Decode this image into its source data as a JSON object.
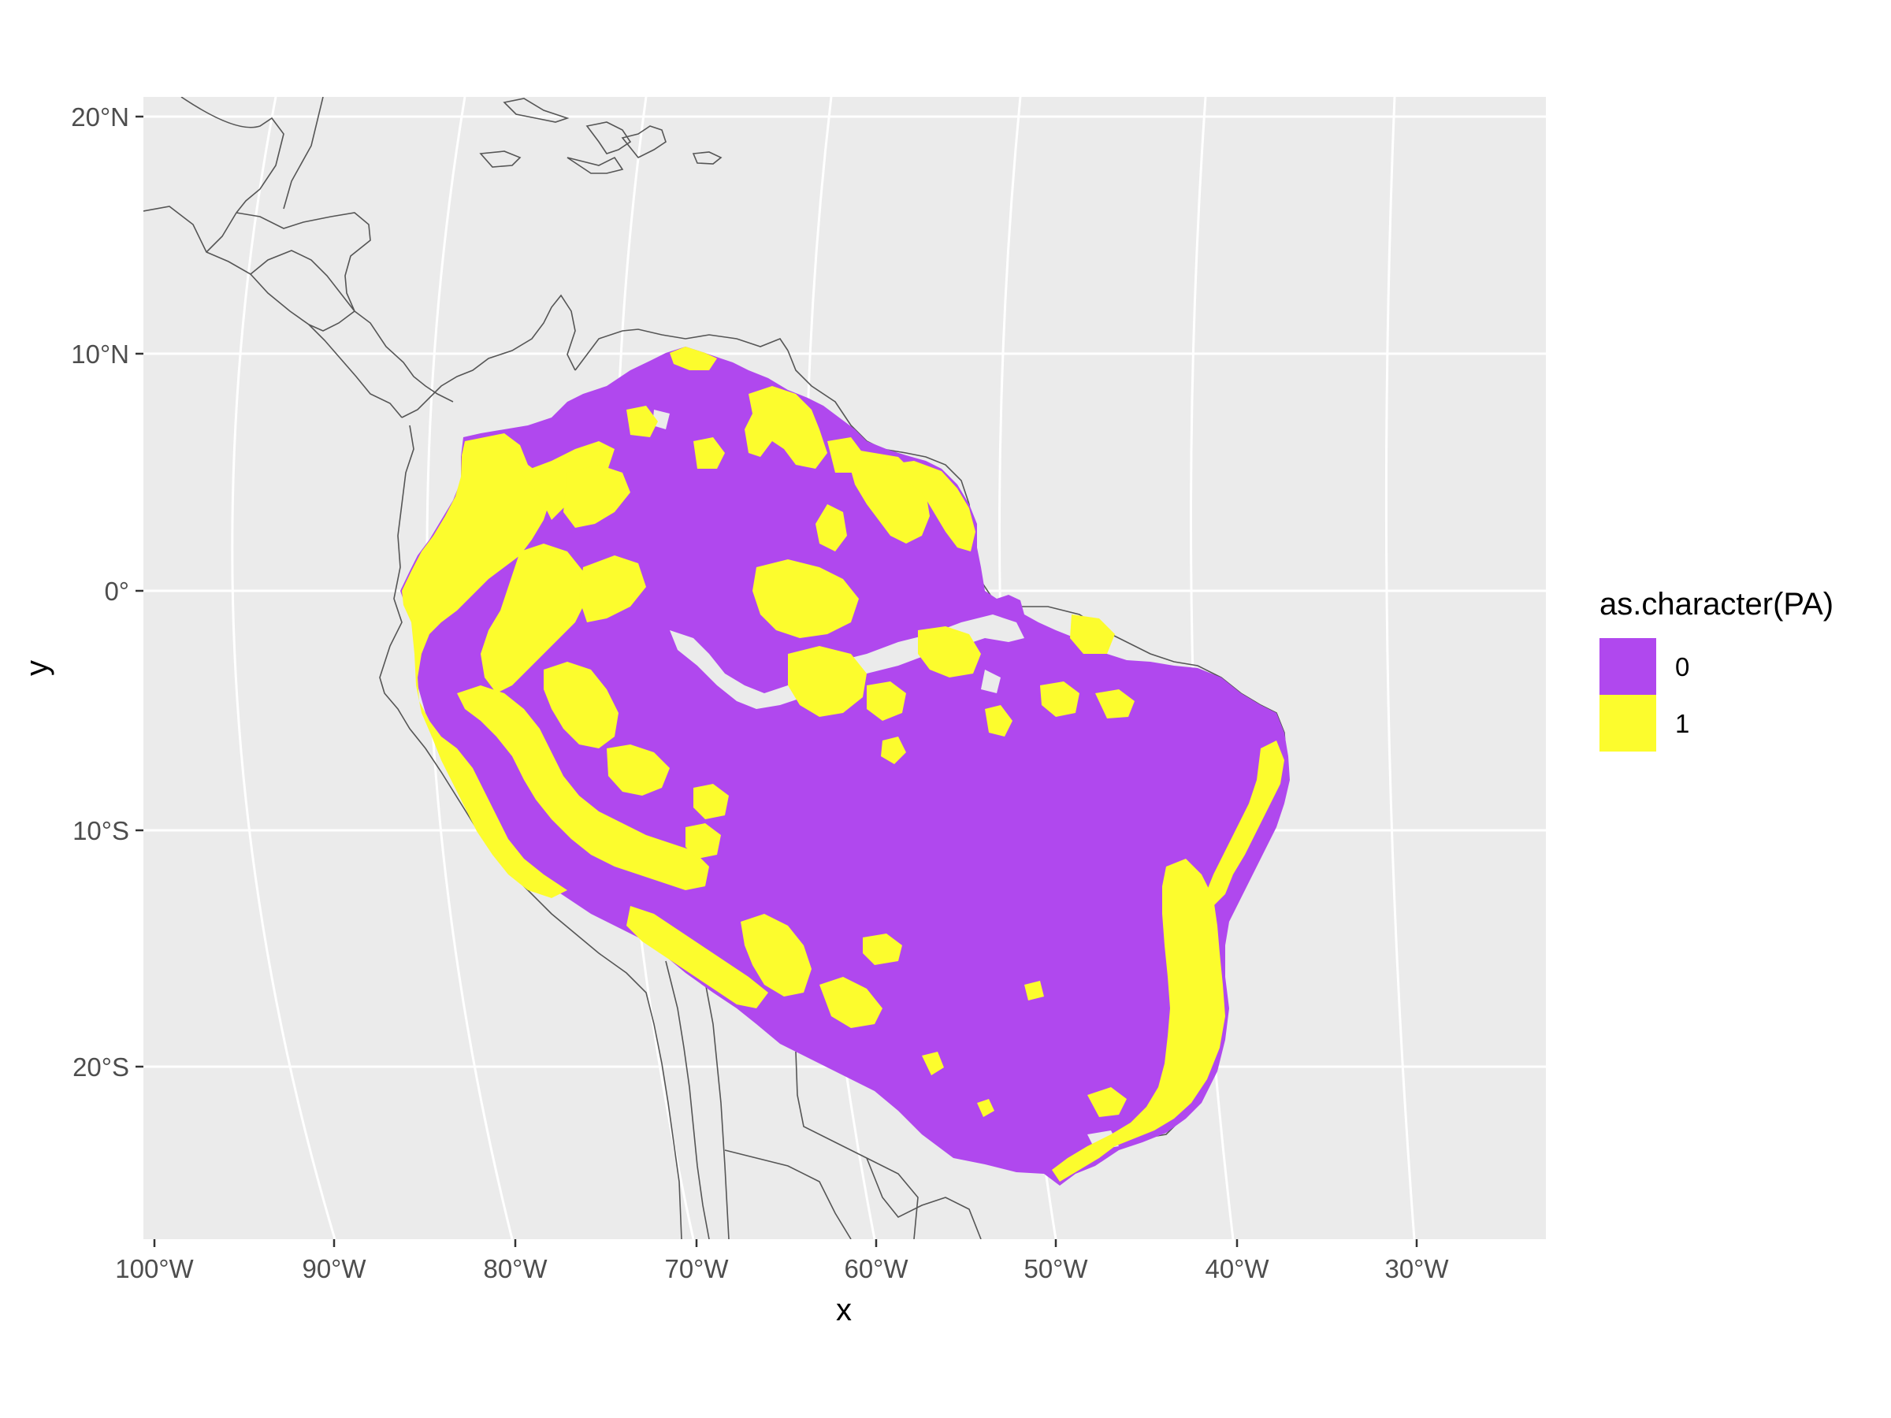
{
  "chart_data": {
    "type": "map",
    "xlabel": "x",
    "ylabel": "y",
    "x_ticks": [
      "100°W",
      "90°W",
      "80°W",
      "70°W",
      "60°W",
      "50°W",
      "40°W",
      "30°W"
    ],
    "y_ticks": [
      "20°N",
      "10°N",
      "0°",
      "10°S",
      "20°S"
    ],
    "grid": true,
    "legend": {
      "title": "as.character(PA)",
      "placement": "right",
      "items": [
        {
          "label": "0",
          "color": "#b048ee"
        },
        {
          "label": "1",
          "color": "#fcfc2d"
        }
      ]
    },
    "colors": {
      "panel": "#ebebeb",
      "grid": "#ffffff",
      "absence": "#b048ee",
      "presence": "#fcfc2d",
      "borders": "#555555"
    }
  }
}
